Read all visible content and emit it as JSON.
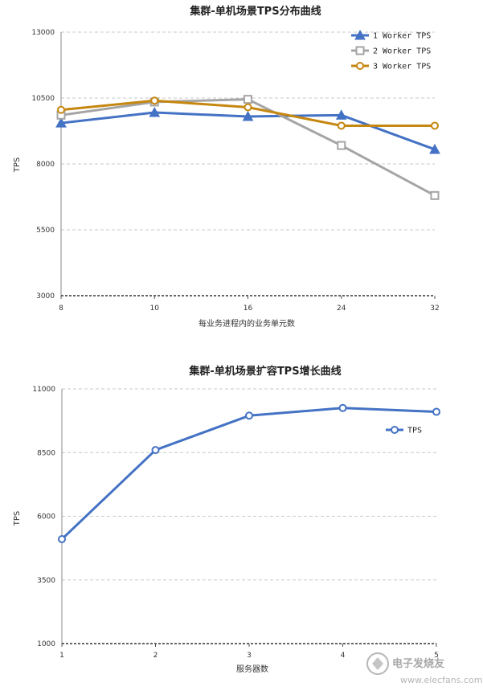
{
  "chart_data": [
    {
      "type": "line",
      "title": "集群-单机场景TPS分布曲线",
      "xlabel": "每业务进程内的业务单元数",
      "ylabel": "TPS",
      "categories": [
        "8",
        "10",
        "16",
        "24",
        "32"
      ],
      "ylim": [
        3000,
        13000
      ],
      "yticks": [
        3000,
        5500,
        8000,
        10500,
        13000
      ],
      "grid": "horizontal-dashed",
      "legend_position": "top-right",
      "series": [
        {
          "name": "1 Worker TPS",
          "marker": "triangle",
          "color": "#4472c4",
          "values": [
            9550,
            9950,
            9800,
            9850,
            8550
          ]
        },
        {
          "name": "2 Worker TPS",
          "marker": "square",
          "color": "#a5a5a5",
          "values": [
            9850,
            10350,
            10450,
            8700,
            6800
          ]
        },
        {
          "name": "3 Worker TPS",
          "marker": "circle",
          "color": "#c5870f",
          "values": [
            10050,
            10400,
            10150,
            9450,
            9450
          ]
        }
      ]
    },
    {
      "type": "line",
      "title": "集群-单机场景扩容TPS增长曲线",
      "xlabel": "服务器数",
      "ylabel": "TPS",
      "categories": [
        "1",
        "2",
        "3",
        "4",
        "5"
      ],
      "ylim": [
        1000,
        11000
      ],
      "yticks": [
        1000,
        3500,
        6000,
        8500,
        11000
      ],
      "grid": "horizontal-dashed",
      "legend_position": "right",
      "series": [
        {
          "name": "TPS",
          "marker": "circle",
          "color": "#4472c4",
          "values": [
            5100,
            8600,
            9950,
            10250,
            10100
          ]
        }
      ]
    }
  ],
  "watermark": {
    "brand": "电子发烧友",
    "site": "www.elecfans.com"
  }
}
